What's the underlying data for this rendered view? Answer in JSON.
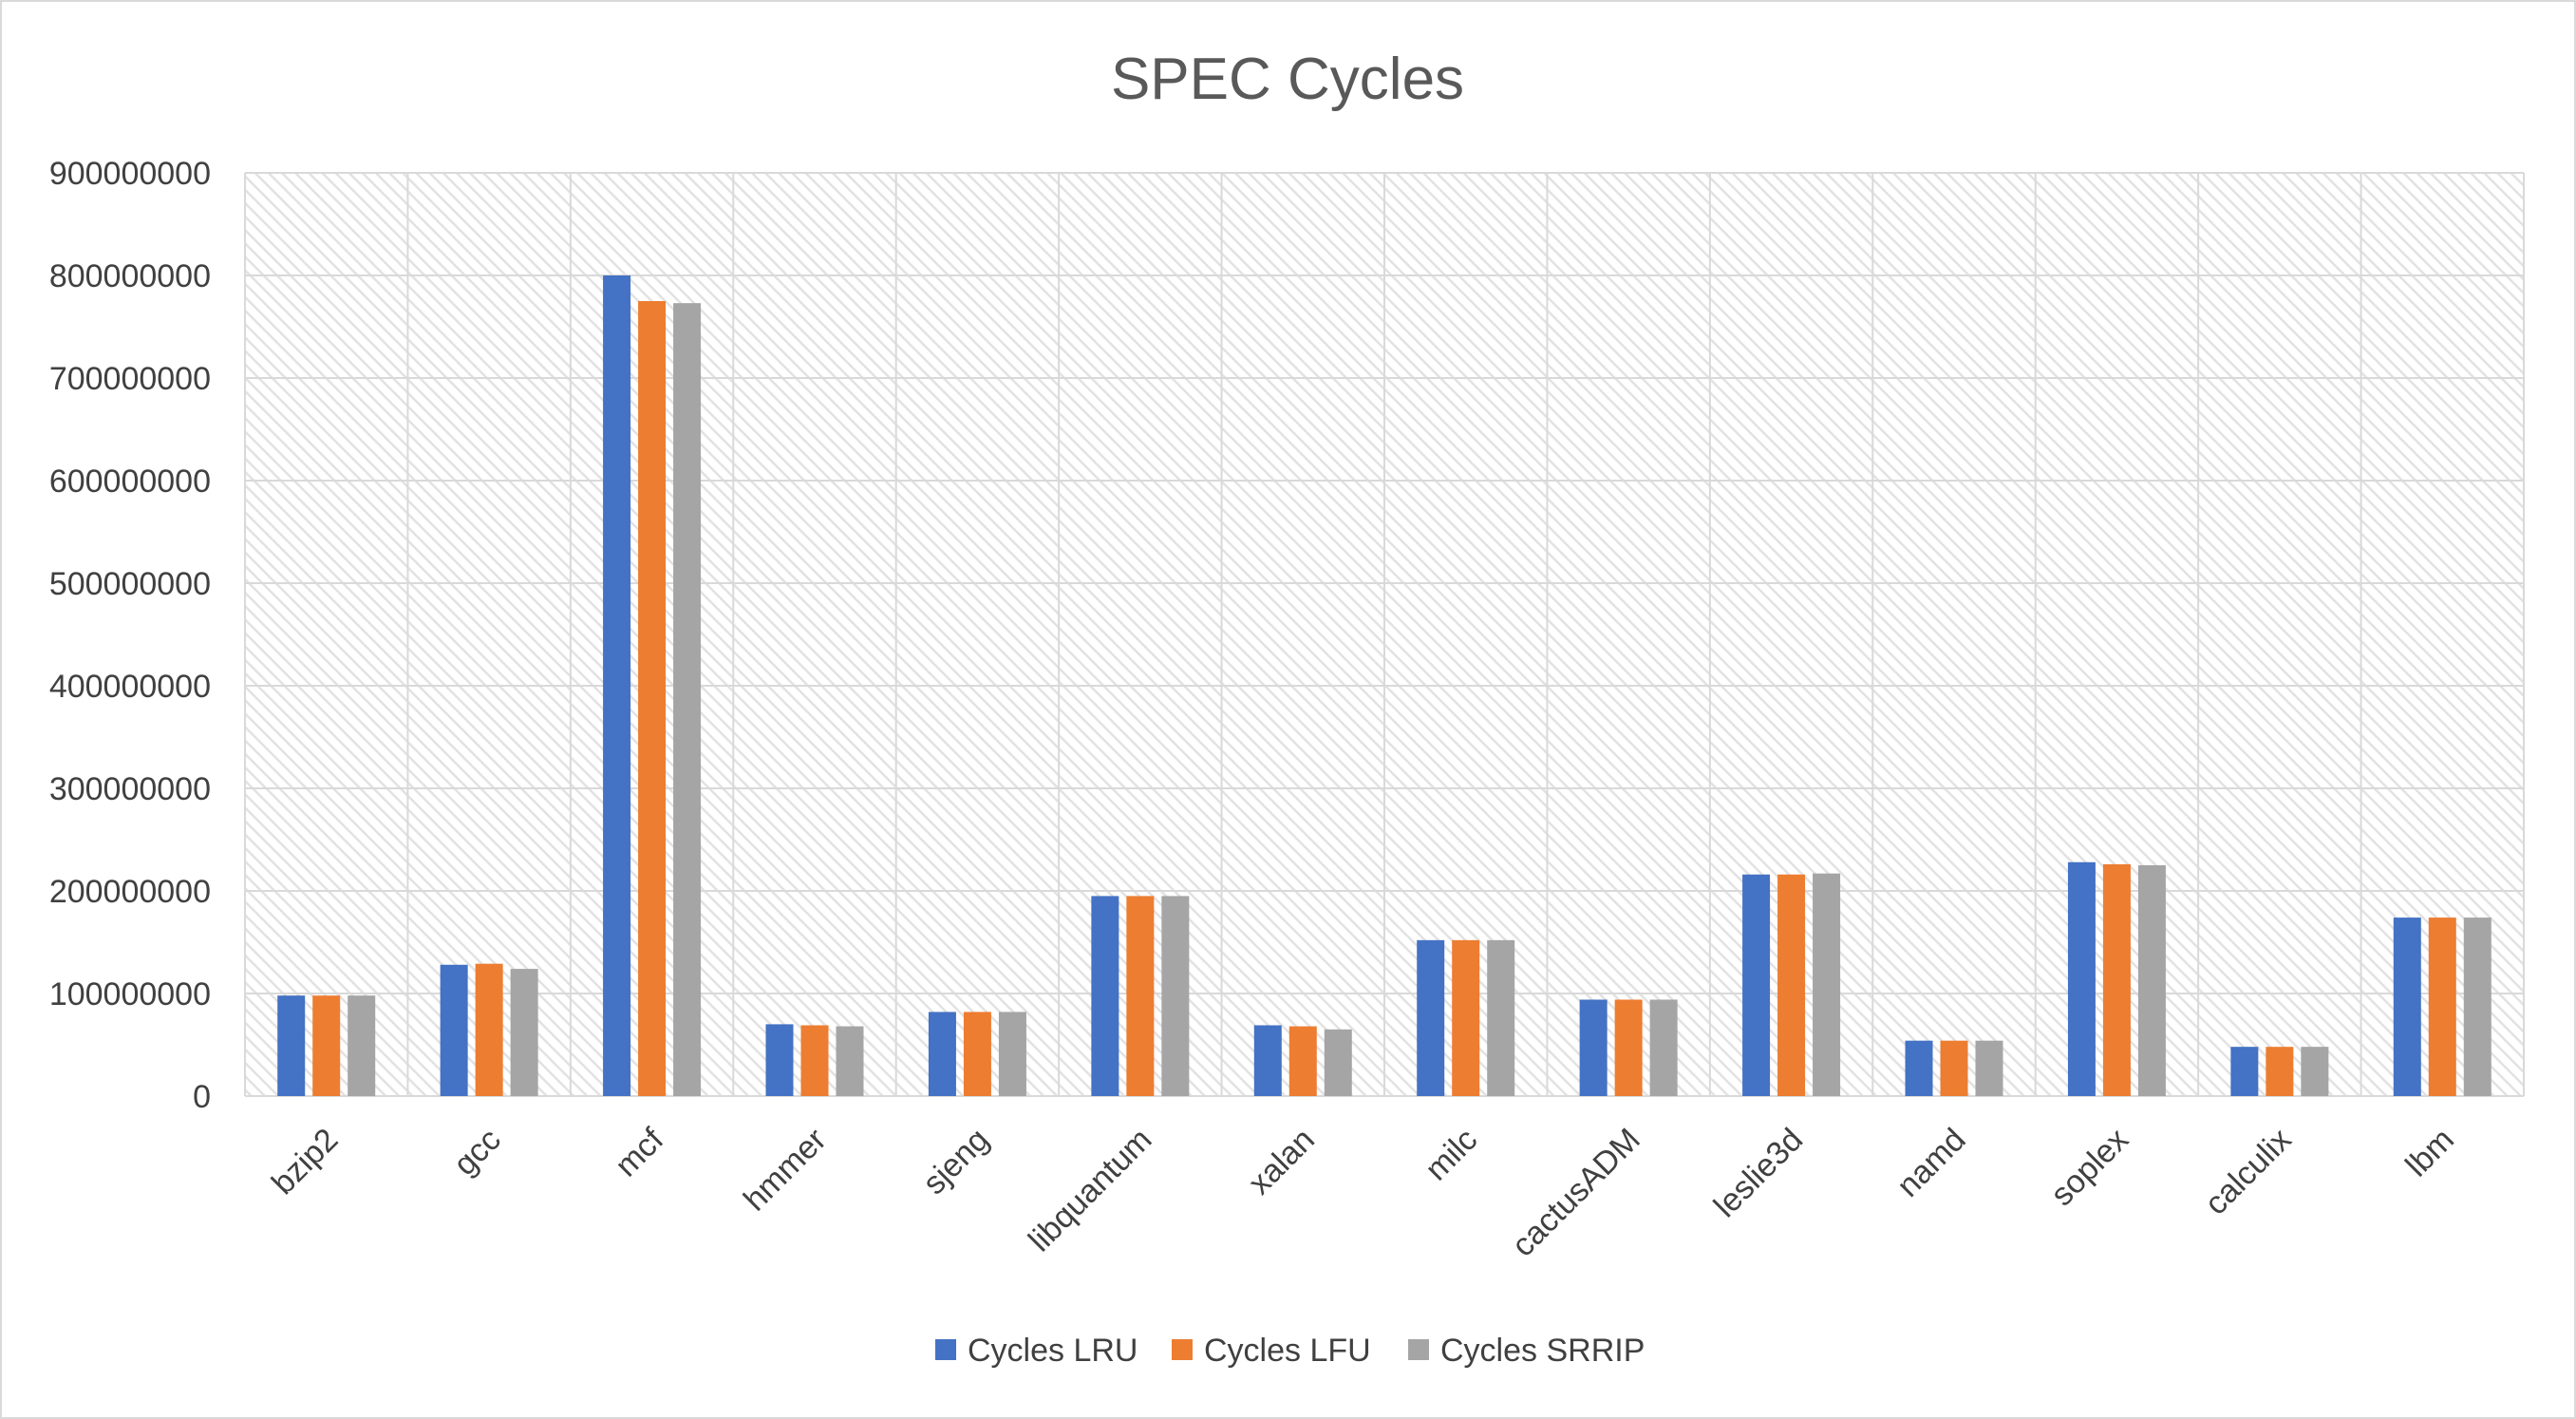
{
  "chart_data": {
    "type": "bar",
    "title": "SPEC Cycles",
    "xlabel": "",
    "ylabel": "",
    "ylim": [
      0,
      900000000
    ],
    "yticks": [
      0,
      100000000,
      200000000,
      300000000,
      400000000,
      500000000,
      600000000,
      700000000,
      800000000,
      900000000
    ],
    "grid": true,
    "legend_position": "bottom",
    "categories": [
      "bzip2",
      "gcc",
      "mcf",
      "hmmer",
      "sjeng",
      "libquantum",
      "xalan",
      "milc",
      "cactusADM",
      "leslie3d",
      "namd",
      "soplex",
      "calculix",
      "lbm"
    ],
    "series": [
      {
        "name": "Cycles LRU",
        "color": "#4472C4",
        "values": [
          98000000,
          128000000,
          800000000,
          70000000,
          82000000,
          195000000,
          69000000,
          152000000,
          94000000,
          216000000,
          54000000,
          228000000,
          48000000,
          174000000
        ]
      },
      {
        "name": "Cycles LFU",
        "color": "#ED7D31",
        "values": [
          98000000,
          129000000,
          775000000,
          69000000,
          82000000,
          195000000,
          68000000,
          152000000,
          94000000,
          216000000,
          54000000,
          226000000,
          48000000,
          174000000
        ]
      },
      {
        "name": "Cycles SRRIP",
        "color": "#A5A5A5",
        "values": [
          98000000,
          124000000,
          773000000,
          68000000,
          82000000,
          195000000,
          65000000,
          152000000,
          94000000,
          217000000,
          54000000,
          225000000,
          48000000,
          174000000
        ]
      }
    ]
  }
}
